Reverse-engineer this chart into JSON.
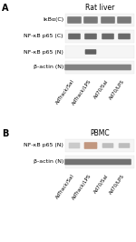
{
  "fig_width": 1.5,
  "fig_height": 2.66,
  "dpi": 100,
  "background": "#ffffff",
  "panel_A_label": "A",
  "panel_A_title": "Rat liver",
  "panel_B_label": "B",
  "panel_B_title": "PBMC",
  "row_labels_A": [
    "IκBα(C)",
    "NF-κB p65 (C)",
    "NF-κB p65 (N)",
    "β-actin (N)"
  ],
  "row_labels_B": [
    "NF-κB p65 (N)",
    "β-actin (N)"
  ],
  "x_labels": [
    "AdTrack/Sal",
    "AdTrack/LPS",
    "Ad70/Sal",
    "Ad70/LPS"
  ],
  "gel_box_color": "#e8e8e8",
  "band_dark": "#505050",
  "band_mid": "#909090",
  "band_light": "#b8b8b8",
  "band_brown": "#b07858",
  "label_fontsize": 4.5,
  "title_fontsize": 5.5,
  "xlabel_fontsize": 4.0,
  "panel_label_fontsize": 7.0
}
